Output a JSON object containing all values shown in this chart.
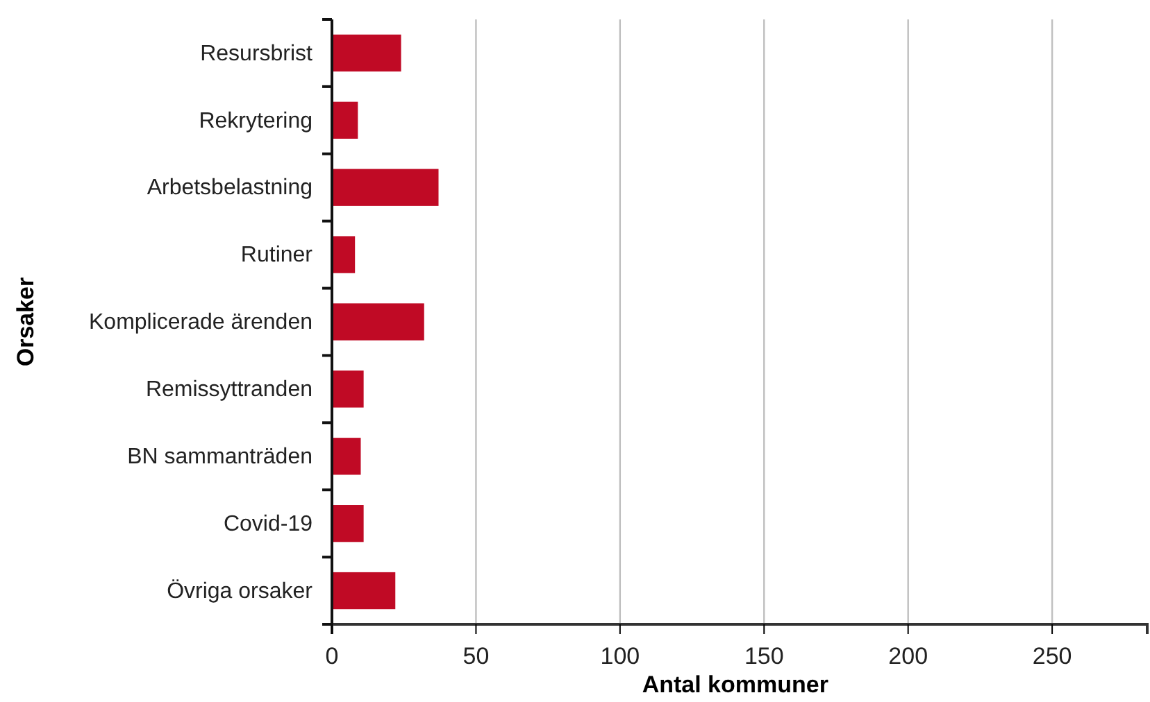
{
  "chart_data": {
    "type": "bar",
    "orientation": "horizontal",
    "xlabel": "Antal kommuner",
    "ylabel": "Orsaker",
    "categories": [
      "Resursbrist",
      "Rekrytering",
      "Arbetsbelastning",
      "Rutiner",
      "Komplicerade ärenden",
      "Remissyttranden",
      "BN sammanträden",
      "Covid-19",
      "Övriga orsaker"
    ],
    "values": [
      24,
      9,
      37,
      8,
      32,
      11,
      10,
      11,
      22
    ],
    "color": "#c00a25",
    "xlim": [
      0,
      283
    ],
    "xticks": [
      0,
      50,
      100,
      150,
      200,
      250
    ],
    "grid": "x"
  }
}
